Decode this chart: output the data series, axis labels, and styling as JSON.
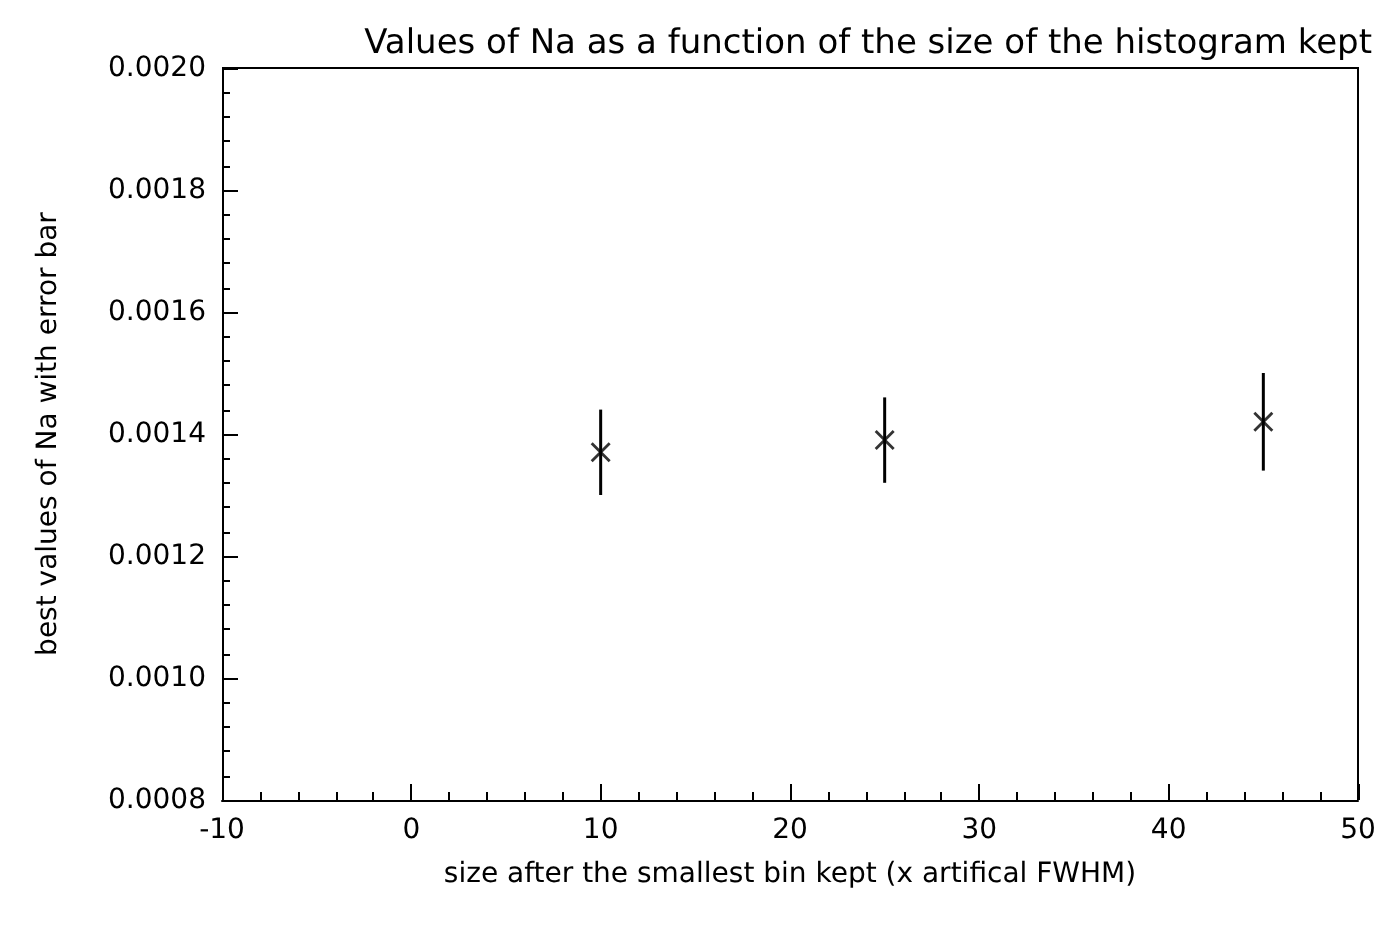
{
  "chart_data": {
    "type": "scatter",
    "title": "Values of Na as a function of the size of the histogram kept",
    "xlabel": "size after the smallest bin kept (x artifical FWHM)",
    "ylabel": "best values of Na with error bar",
    "x": [
      10,
      25,
      45
    ],
    "values": [
      0.00137,
      0.00139,
      0.00142
    ],
    "errors": [
      7e-05,
      7e-05,
      8e-05
    ],
    "color": "#000000",
    "marker": "cross",
    "xlim": [
      -10,
      50
    ],
    "xticks": [
      -10,
      0,
      10,
      20,
      30,
      40,
      50
    ],
    "ylim": [
      0.0008,
      0.002
    ],
    "yticks": [
      0.0008,
      {
        "value": 0.001,
        "label": "0.0010"
      },
      0.0012,
      0.0014,
      0.0016,
      0.0018,
      {
        "value": 0.002,
        "label": "0.0020"
      }
    ],
    "grid": false
  }
}
